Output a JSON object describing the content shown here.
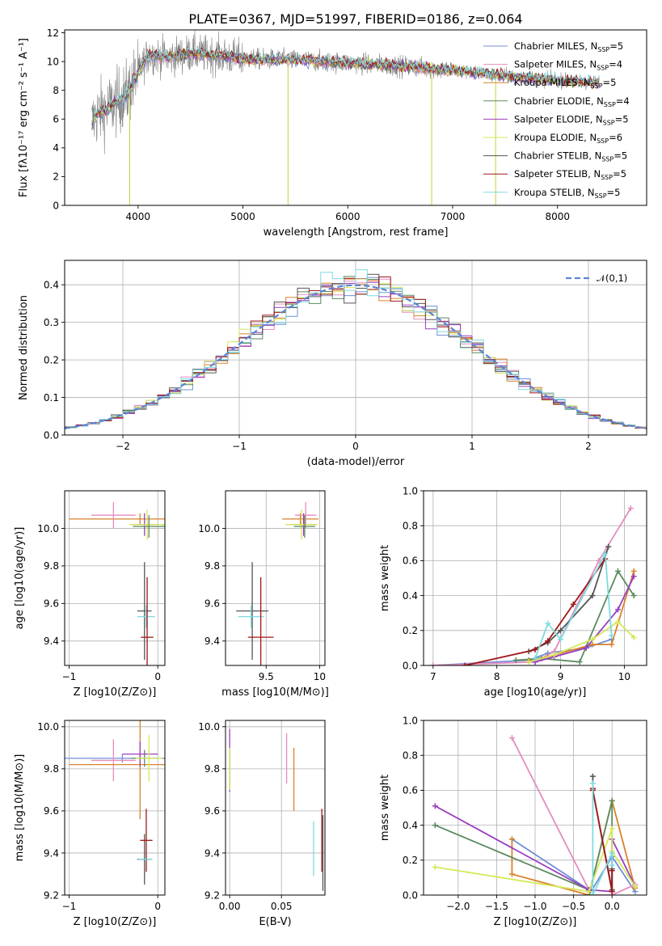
{
  "figure_title": "PLATE=0367, MJD=51997, FIBERID=0186, z=0.064",
  "colors": [
    "#6f8fd6",
    "#e58cbf",
    "#d9822b",
    "#5a8a5f",
    "#9c3ec0",
    "#d6e85a",
    "#555555",
    "#a01818",
    "#7fdbe0"
  ],
  "chart_data": [
    {
      "id": "spectrum",
      "type": "line",
      "title": "PLATE=0367, MJD=51997, FIBERID=0186, z=0.064",
      "xlabel": "wavelength [Angstrom, rest frame]",
      "ylabel": "Flux [fλ10⁻¹⁷ erg cm⁻² s⁻¹ A⁻¹]",
      "xlim": [
        3300,
        8850
      ],
      "ylim": [
        0,
        12.2
      ],
      "xticks": [
        4000,
        5000,
        6000,
        7000,
        8000
      ],
      "yticks": [
        0,
        2,
        4,
        6,
        8,
        10,
        12
      ],
      "legend_position": "top-right",
      "legend": [
        "Chabrier MILES, N_SSP=5",
        "Salpeter MILES, N_SSP=4",
        "Kroupa MILES, N_SSP=5",
        "Chabrier ELODIE, N_SSP=4",
        "Salpeter ELODIE, N_SSP=5",
        "Kroupa ELODIE, N_SSP=6",
        "Chabrier STELIB, N_SSP=5",
        "Salpeter STELIB, N_SSP=5",
        "Kroupa STELIB, N_SSP=5"
      ],
      "data_color": "#808080",
      "continuum": {
        "x": [
          3550,
          3600,
          3700,
          3800,
          3900,
          4000,
          4100,
          4300,
          4500,
          4800,
          5000,
          5500,
          6000,
          6500,
          7000,
          7500,
          8000,
          8200,
          8400
        ],
        "y": [
          5.5,
          6.3,
          6.7,
          7.2,
          7.8,
          9.2,
          10.5,
          10.3,
          10.6,
          10.4,
          10.2,
          10.1,
          9.9,
          9.7,
          9.4,
          9.0,
          8.7,
          8.6,
          8.5
        ]
      }
    },
    {
      "id": "residuals",
      "type": "histogram",
      "xlabel": "(data-model)/error",
      "ylabel": "Normed distribution",
      "xlim": [
        -2.5,
        2.5
      ],
      "ylim": [
        0,
        0.465
      ],
      "xticks": [
        -2,
        -1,
        0,
        1,
        2
      ],
      "yticks": [
        0.0,
        0.1,
        0.2,
        0.3,
        0.4
      ],
      "grid": true,
      "bin_edges_start": -2.5,
      "bin_width": 0.1,
      "reference_curve": {
        "label": "𝒩(0,1)",
        "style": "dashed",
        "color": "#5b84d6"
      },
      "legend_position": "top-right"
    },
    {
      "id": "age-vs-Z",
      "type": "errorbar",
      "xlabel": "Z [log10(Z/Z⊙)]",
      "ylabel": "age  [log10(age/yr)]",
      "xlim": [
        -1.05,
        0.08
      ],
      "ylim": [
        9.27,
        10.2
      ],
      "xticks": [
        -1,
        0
      ],
      "yticks": [
        9.4,
        9.6,
        9.8,
        10.0
      ],
      "grid": true,
      "points": [
        {
          "x": -0.2,
          "y": 10.05,
          "xerr": 0.8,
          "yerr": 0.03,
          "c": 2
        },
        {
          "x": -0.5,
          "y": 10.07,
          "xerr": 0.25,
          "yerr": 0.07,
          "c": 1
        },
        {
          "x": -0.15,
          "y": 10.02,
          "xerr": 0.15,
          "yerr": 0.06,
          "c": 4
        },
        {
          "x": -0.12,
          "y": 10.02,
          "xerr": 0.2,
          "yerr": 0.08,
          "c": 5
        },
        {
          "x": -0.1,
          "y": 10.01,
          "xerr": 0.18,
          "yerr": 0.06,
          "c": 3
        },
        {
          "x": -0.15,
          "y": 9.56,
          "xerr": 0.08,
          "yerr": 0.26,
          "c": 6
        },
        {
          "x": -0.13,
          "y": 9.53,
          "xerr": 0.1,
          "yerr": 0.06,
          "c": 8
        },
        {
          "x": -0.12,
          "y": 9.42,
          "xerr": 0.07,
          "yerr": 0.32,
          "c": 7
        }
      ]
    },
    {
      "id": "age-vs-mass",
      "type": "errorbar",
      "xlabel": "mass [log10(M/M⊙)]",
      "ylabel": "",
      "xlim": [
        9.12,
        10.05
      ],
      "ylim": [
        9.27,
        10.2
      ],
      "xticks": [
        9.5,
        10.0
      ],
      "yticks": [
        9.4,
        9.6,
        9.8,
        10.0
      ],
      "grid": true,
      "points": [
        {
          "x": 9.82,
          "y": 10.05,
          "xerr": 0.17,
          "yerr": 0.03,
          "c": 2
        },
        {
          "x": 9.87,
          "y": 10.07,
          "xerr": 0.1,
          "yerr": 0.07,
          "c": 1
        },
        {
          "x": 9.85,
          "y": 10.02,
          "xerr": 0.12,
          "yerr": 0.06,
          "c": 4
        },
        {
          "x": 9.83,
          "y": 10.02,
          "xerr": 0.15,
          "yerr": 0.08,
          "c": 5
        },
        {
          "x": 9.86,
          "y": 10.01,
          "xerr": 0.1,
          "yerr": 0.06,
          "c": 3
        },
        {
          "x": 9.37,
          "y": 9.56,
          "xerr": 0.15,
          "yerr": 0.26,
          "c": 6
        },
        {
          "x": 9.36,
          "y": 9.53,
          "xerr": 0.12,
          "yerr": 0.06,
          "c": 8
        },
        {
          "x": 9.45,
          "y": 9.42,
          "xerr": 0.12,
          "yerr": 0.32,
          "c": 7
        }
      ]
    },
    {
      "id": "weight-vs-age",
      "type": "line",
      "xlabel": "age  [log10(age/yr)]",
      "ylabel": "mass weight",
      "xlim": [
        6.85,
        10.35
      ],
      "ylim": [
        0,
        1.0
      ],
      "xticks": [
        7,
        8,
        9,
        10
      ],
      "yticks": [
        0.0,
        0.2,
        0.4,
        0.6,
        0.8,
        1.0
      ],
      "grid": true,
      "series": [
        {
          "c": 0,
          "x": [
            7.0,
            8.5,
            8.8,
            9.4,
            9.8
          ],
          "y": [
            0.0,
            0.03,
            0.07,
            0.1,
            0.15
          ]
        },
        {
          "c": 1,
          "x": [
            7.0,
            8.6,
            8.9,
            9.6,
            10.1
          ],
          "y": [
            0.0,
            0.02,
            0.08,
            0.6,
            0.9
          ]
        },
        {
          "c": 2,
          "x": [
            8.5,
            8.8,
            9.5,
            9.8,
            10.15
          ],
          "y": [
            0.03,
            0.05,
            0.12,
            0.12,
            0.54
          ]
        },
        {
          "c": 3,
          "x": [
            8.3,
            8.7,
            9.3,
            9.9,
            10.15
          ],
          "y": [
            0.03,
            0.04,
            0.02,
            0.54,
            0.4
          ]
        },
        {
          "c": 4,
          "x": [
            8.6,
            8.9,
            9.4,
            9.9,
            10.15
          ],
          "y": [
            0.02,
            0.05,
            0.1,
            0.32,
            0.51
          ]
        },
        {
          "c": 5,
          "x": [
            8.5,
            8.9,
            9.5,
            9.9,
            10.15
          ],
          "y": [
            0.02,
            0.06,
            0.15,
            0.25,
            0.16
          ]
        },
        {
          "c": 6,
          "x": [
            8.5,
            8.8,
            9.0,
            9.5,
            9.75
          ],
          "y": [
            0.08,
            0.13,
            0.2,
            0.4,
            0.68
          ]
        },
        {
          "c": 7,
          "x": [
            7.5,
            8.6,
            8.8,
            9.2,
            9.7
          ],
          "y": [
            0.0,
            0.09,
            0.14,
            0.35,
            0.61
          ]
        },
        {
          "c": 8,
          "x": [
            8.6,
            8.8,
            9.0,
            9.7,
            9.8
          ],
          "y": [
            0.04,
            0.24,
            0.15,
            0.64,
            0.17
          ]
        }
      ]
    },
    {
      "id": "mass-vs-Z",
      "type": "errorbar",
      "xlabel": "Z [log10(Z/Z⊙)]",
      "ylabel": "mass [log10(M/M⊙)]",
      "xlim": [
        -1.05,
        0.08
      ],
      "ylim": [
        9.2,
        10.03
      ],
      "xticks": [
        -1,
        0
      ],
      "yticks": [
        9.2,
        9.4,
        9.6,
        9.8,
        10.0
      ],
      "grid": true,
      "points": [
        {
          "x": -0.4,
          "y": 9.85,
          "xerr": 0.65,
          "yerr": 0.02,
          "c": 0
        },
        {
          "x": -0.5,
          "y": 9.84,
          "xerr": 0.25,
          "yerr": 0.1,
          "c": 1
        },
        {
          "x": -0.2,
          "y": 9.82,
          "xerr": 0.8,
          "yerr": 0.26,
          "c": 2
        },
        {
          "x": -0.15,
          "y": 9.85,
          "xerr": 0.15,
          "yerr": 0.04,
          "c": 3
        },
        {
          "x": -0.2,
          "y": 9.87,
          "xerr": 0.2,
          "yerr": 0.06,
          "c": 4
        },
        {
          "x": -0.1,
          "y": 9.85,
          "xerr": 0.15,
          "yerr": 0.11,
          "c": 5
        },
        {
          "x": -0.15,
          "y": 9.37,
          "xerr": 0.08,
          "yerr": 0.12,
          "c": 6
        },
        {
          "x": -0.13,
          "y": 9.46,
          "xerr": 0.07,
          "yerr": 0.15,
          "c": 7
        },
        {
          "x": -0.14,
          "y": 9.37,
          "xerr": 0.08,
          "yerr": 0.01,
          "c": 8
        }
      ]
    },
    {
      "id": "mass-vs-EBV",
      "type": "errorbar",
      "xlabel": "E(B-V)",
      "ylabel": "",
      "xlim": [
        -0.004,
        0.092
      ],
      "ylim": [
        9.2,
        10.03
      ],
      "xticks": [
        0.0,
        0.05
      ],
      "xtick_labels": [
        "0.00",
        "0.05"
      ],
      "yticks": [
        9.2,
        9.4,
        9.6,
        9.8,
        10.0
      ],
      "grid": true,
      "points": [
        {
          "x": 0.0,
          "y": 9.84,
          "xerr": 0,
          "yerr": 0.15,
          "c": 4
        },
        {
          "x": 0.0,
          "y": 9.8,
          "xerr": 0,
          "yerr": 0.1,
          "c": 5
        },
        {
          "x": 0.055,
          "y": 9.85,
          "xerr": 0,
          "yerr": 0.12,
          "c": 1
        },
        {
          "x": 0.062,
          "y": 9.75,
          "xerr": 0,
          "yerr": 0.15,
          "c": 2
        },
        {
          "x": 0.081,
          "y": 9.42,
          "xerr": 0,
          "yerr": 0.13,
          "c": 8
        },
        {
          "x": 0.089,
          "y": 9.46,
          "xerr": 0,
          "yerr": 0.15,
          "c": 7
        },
        {
          "x": 0.09,
          "y": 9.4,
          "xerr": 0,
          "yerr": 0.18,
          "c": 6
        }
      ]
    },
    {
      "id": "weight-vs-Z",
      "type": "line",
      "xlabel": "Z [log10(Z/Z⊙)]",
      "ylabel": "mass weight",
      "xlim": [
        -2.45,
        0.45
      ],
      "ylim": [
        0,
        1.0
      ],
      "xticks": [
        -2.0,
        -1.5,
        -1.0,
        -0.5,
        0.0
      ],
      "yticks": [
        0.0,
        0.2,
        0.4,
        0.6,
        0.8,
        1.0
      ],
      "grid": true,
      "series": [
        {
          "c": 0,
          "x": [
            -1.3,
            -0.3,
            -0.3,
            0.0,
            0.3
          ],
          "y": [
            0.32,
            0.03,
            0.0,
            0.22,
            0.02
          ]
        },
        {
          "c": 1,
          "x": [
            -1.3,
            -0.3,
            -0.3,
            0.0,
            0.3
          ],
          "y": [
            0.9,
            0.03,
            0.0,
            0.0,
            0.06
          ]
        },
        {
          "c": 2,
          "x": [
            -1.3,
            -1.3,
            -0.3,
            0.0,
            0.3
          ],
          "y": [
            0.32,
            0.12,
            0.0,
            0.54,
            0.04
          ]
        },
        {
          "c": 3,
          "x": [
            -2.3,
            -0.3,
            -0.3,
            0.0,
            0.0
          ],
          "y": [
            0.4,
            0.03,
            0.0,
            0.54,
            0.02
          ]
        },
        {
          "c": 4,
          "x": [
            -2.3,
            -0.3,
            0.0,
            0.0,
            0.3
          ],
          "y": [
            0.51,
            0.03,
            0.02,
            0.32,
            0.05
          ]
        },
        {
          "c": 5,
          "x": [
            -2.3,
            -0.3,
            0.0,
            0.0,
            0.3
          ],
          "y": [
            0.16,
            0.02,
            0.38,
            0.25,
            0.05
          ]
        },
        {
          "c": 6,
          "x": [
            -0.25,
            -0.25,
            0.0,
            0.0
          ],
          "y": [
            0.68,
            0.6,
            0.03,
            0.15
          ]
        },
        {
          "c": 7,
          "x": [
            -0.25,
            -0.25,
            0.0,
            0.0
          ],
          "y": [
            0.61,
            0.6,
            0.02,
            0.14
          ]
        },
        {
          "c": 8,
          "x": [
            -0.25,
            -0.25,
            0.0,
            0.0
          ],
          "y": [
            0.64,
            0.0,
            0.24,
            0.17
          ]
        }
      ]
    }
  ]
}
